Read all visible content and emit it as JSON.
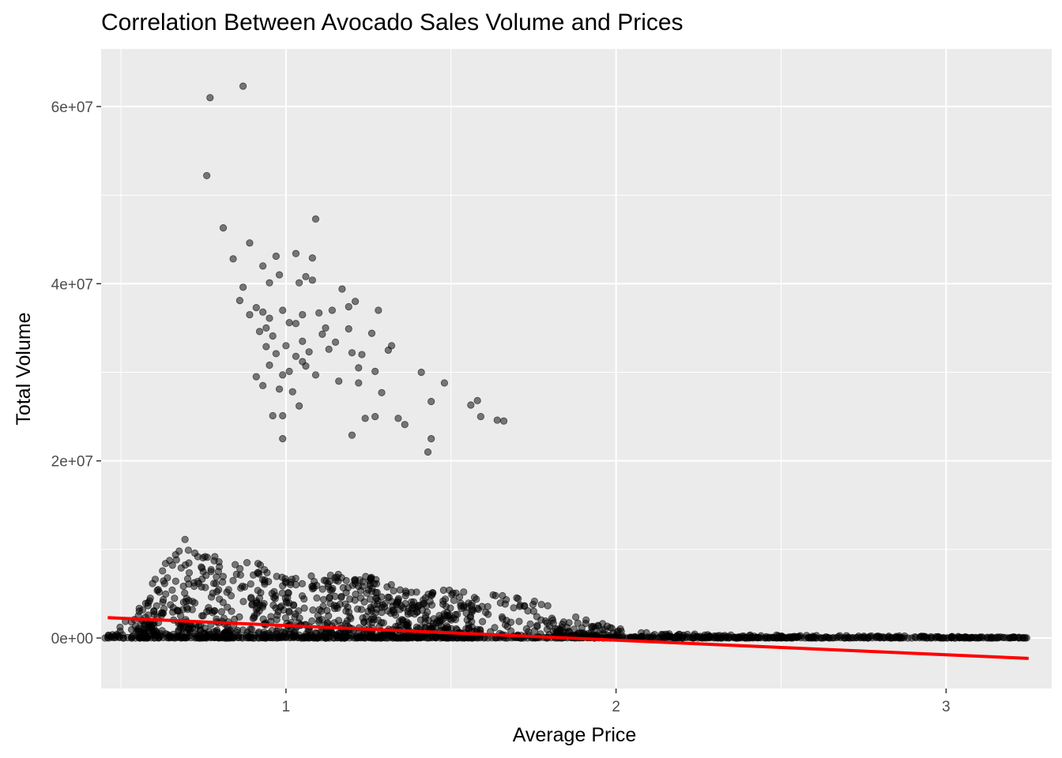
{
  "chart_data": {
    "type": "scatter",
    "title": "Correlation Between Avocado Sales Volume and Prices",
    "xlabel": "Average Price",
    "ylabel": "Total Volume",
    "xlim": [
      0.44,
      3.32
    ],
    "ylim": [
      -5700000,
      66500000
    ],
    "x_ticks": [
      1,
      2,
      3
    ],
    "x_tick_labels": [
      "1",
      "2",
      "3"
    ],
    "y_ticks": [
      0,
      20000000,
      40000000,
      60000000
    ],
    "y_tick_labels": [
      "0e+00",
      "2e+07",
      "4e+07",
      "6e+07"
    ],
    "grid": true,
    "legend": "none",
    "colors": {
      "panel": "#ebebeb",
      "grid_major": "#ffffff",
      "point": "#000000",
      "trend": "#ff0000"
    },
    "series": [
      {
        "points_high_volume": [
          [
            0.77,
            61000000
          ],
          [
            0.87,
            62300000
          ],
          [
            0.76,
            52200000
          ],
          [
            0.81,
            46300000
          ],
          [
            1.09,
            47300000
          ],
          [
            0.89,
            44600000
          ],
          [
            0.84,
            42800000
          ],
          [
            0.97,
            43100000
          ],
          [
            1.03,
            43400000
          ],
          [
            1.08,
            42900000
          ],
          [
            0.93,
            42000000
          ],
          [
            0.98,
            41000000
          ],
          [
            0.95,
            40100000
          ],
          [
            1.06,
            40800000
          ],
          [
            1.08,
            40400000
          ],
          [
            0.87,
            39600000
          ],
          [
            1.04,
            40100000
          ],
          [
            1.17,
            39400000
          ],
          [
            0.91,
            37300000
          ],
          [
            0.89,
            36500000
          ],
          [
            0.93,
            36800000
          ],
          [
            0.99,
            37000000
          ],
          [
            1.05,
            36500000
          ],
          [
            1.1,
            36700000
          ],
          [
            1.14,
            37000000
          ],
          [
            1.19,
            37400000
          ],
          [
            1.21,
            38000000
          ],
          [
            1.28,
            37000000
          ],
          [
            0.94,
            35000000
          ],
          [
            0.96,
            34100000
          ],
          [
            1.01,
            35600000
          ],
          [
            1.03,
            35500000
          ],
          [
            1.05,
            33500000
          ],
          [
            1.11,
            34300000
          ],
          [
            1.19,
            34900000
          ],
          [
            1.26,
            34400000
          ],
          [
            0.94,
            32900000
          ],
          [
            0.97,
            32100000
          ],
          [
            1.0,
            33000000
          ],
          [
            1.03,
            31800000
          ],
          [
            1.07,
            32300000
          ],
          [
            1.13,
            32600000
          ],
          [
            1.2,
            32200000
          ],
          [
            1.23,
            32000000
          ],
          [
            1.31,
            32500000
          ],
          [
            0.95,
            30800000
          ],
          [
            0.99,
            29700000
          ],
          [
            1.01,
            30100000
          ],
          [
            1.06,
            30700000
          ],
          [
            1.09,
            29700000
          ],
          [
            1.16,
            29000000
          ],
          [
            1.22,
            30500000
          ],
          [
            1.27,
            30100000
          ],
          [
            0.93,
            28500000
          ],
          [
            0.98,
            28100000
          ],
          [
            1.02,
            27800000
          ],
          [
            1.22,
            28800000
          ],
          [
            1.29,
            27700000
          ],
          [
            1.04,
            26200000
          ],
          [
            0.96,
            25100000
          ],
          [
            0.99,
            25100000
          ],
          [
            1.24,
            24800000
          ],
          [
            1.27,
            25000000
          ],
          [
            1.34,
            24800000
          ],
          [
            1.36,
            24100000
          ],
          [
            1.2,
            22900000
          ],
          [
            0.99,
            22500000
          ],
          [
            1.44,
            22500000
          ],
          [
            1.43,
            21000000
          ],
          [
            1.41,
            30000000
          ],
          [
            1.44,
            26700000
          ],
          [
            1.48,
            28800000
          ],
          [
            1.56,
            26300000
          ],
          [
            1.58,
            26800000
          ],
          [
            1.59,
            25000000
          ],
          [
            1.64,
            24600000
          ],
          [
            1.66,
            24500000
          ],
          [
            0.91,
            29500000
          ],
          [
            1.05,
            31200000
          ],
          [
            0.92,
            34600000
          ],
          [
            0.86,
            38100000
          ],
          [
            0.95,
            36100000
          ],
          [
            1.12,
            35000000
          ],
          [
            1.15,
            33400000
          ],
          [
            1.32,
            33000000
          ]
        ]
      }
    ],
    "trend_line": {
      "x": [
        0.46,
        3.25
      ],
      "y": [
        2300000,
        -2300000
      ]
    },
    "low_band": {
      "description_points": "dense cluster of points between x 0.45 and 3.25, volume mostly below 1.1e7",
      "envelope_x": [
        0.45,
        0.55,
        0.65,
        0.7,
        0.75,
        0.85,
        0.95,
        1.05,
        1.15,
        1.25,
        1.35,
        1.45,
        1.55,
        1.65,
        1.75,
        1.85,
        1.95,
        2.05,
        2.2,
        2.4,
        2.6,
        2.8,
        3.0,
        3.25
      ],
      "envelope_top": [
        500000,
        3000000,
        11000000,
        11200000,
        9500000,
        9000000,
        8200000,
        7600000,
        7200000,
        7000000,
        6000000,
        5500000,
        5300000,
        4800000,
        4500000,
        2600000,
        1800000,
        700000,
        500000,
        400000,
        300000,
        250000,
        200000,
        100000
      ]
    }
  }
}
